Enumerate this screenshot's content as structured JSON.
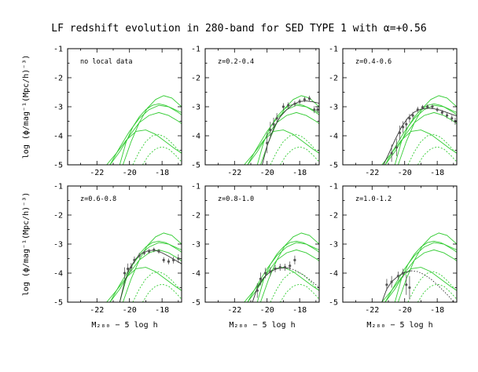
{
  "figure": {
    "title": "LF redshift evolution in 280-band for SED TYPE 1 with α=+0.56",
    "ylabel": "log (ϕ/mag⁻¹(Mpc/h)⁻³)",
    "xlabel": "M₂₈₀ − 5 log h"
  },
  "colors": {
    "axes": "#000000",
    "data_points": "#555555",
    "fit_curve": "#333333",
    "reference_curves": "#33cc33"
  },
  "chart_data": [
    {
      "type": "scatter",
      "panel_label": "no local data",
      "xlim": [
        -23.8,
        -16.8
      ],
      "ylim": [
        -5,
        -1
      ],
      "x_ticks": [
        -22,
        -20,
        -18
      ],
      "y_ticks": [
        -5,
        -4,
        -3,
        -2,
        -1
      ],
      "points": [],
      "fit": [],
      "fit_extrapolated": []
    },
    {
      "type": "scatter",
      "panel_label": "z=0.2-0.4",
      "xlim": [
        -23.8,
        -16.8
      ],
      "ylim": [
        -5,
        -1
      ],
      "x_ticks": [
        -22,
        -20,
        -18
      ],
      "y_ticks": [
        -5,
        -4,
        -3,
        -2,
        -1
      ],
      "points": [
        {
          "x": -20.0,
          "y": -4.25,
          "err": 0.35
        },
        {
          "x": -19.8,
          "y": -3.8,
          "err": 0.28
        },
        {
          "x": -19.6,
          "y": -3.6,
          "err": 0.22
        },
        {
          "x": -19.4,
          "y": -3.4,
          "err": 0.18
        },
        {
          "x": -19.0,
          "y": -3.0,
          "err": 0.12
        },
        {
          "x": -18.7,
          "y": -2.95,
          "err": 0.1
        },
        {
          "x": -18.3,
          "y": -2.9,
          "err": 0.09
        },
        {
          "x": -18.0,
          "y": -2.82,
          "err": 0.09
        },
        {
          "x": -17.7,
          "y": -2.75,
          "err": 0.09
        },
        {
          "x": -17.4,
          "y": -2.72,
          "err": 0.1
        },
        {
          "x": -17.1,
          "y": -3.1,
          "err": 0.12
        },
        {
          "x": -16.9,
          "y": -3.1,
          "err": 0.12
        }
      ],
      "fit": [
        {
          "x": -20.3,
          "y": -5.0
        },
        {
          "x": -20.0,
          "y": -4.35
        },
        {
          "x": -19.6,
          "y": -3.75
        },
        {
          "x": -19.2,
          "y": -3.35
        },
        {
          "x": -18.8,
          "y": -3.1
        },
        {
          "x": -18.4,
          "y": -2.92
        },
        {
          "x": -18.0,
          "y": -2.82
        },
        {
          "x": -17.6,
          "y": -2.8
        },
        {
          "x": -17.2,
          "y": -2.83
        },
        {
          "x": -16.8,
          "y": -2.88
        }
      ],
      "fit_extrapolated": []
    },
    {
      "type": "scatter",
      "panel_label": "z=0.4-0.6",
      "xlim": [
        -23.8,
        -16.8
      ],
      "ylim": [
        -5,
        -1
      ],
      "x_ticks": [
        -22,
        -20,
        -18
      ],
      "y_ticks": [
        -5,
        -4,
        -3,
        -2,
        -1
      ],
      "points": [
        {
          "x": -20.8,
          "y": -4.6,
          "err": 0.3
        },
        {
          "x": -20.5,
          "y": -4.4,
          "err": 0.3
        },
        {
          "x": -20.3,
          "y": -3.9,
          "err": 0.25
        },
        {
          "x": -20.1,
          "y": -3.7,
          "err": 0.2
        },
        {
          "x": -19.9,
          "y": -3.6,
          "err": 0.18
        },
        {
          "x": -19.7,
          "y": -3.4,
          "err": 0.15
        },
        {
          "x": -19.5,
          "y": -3.3,
          "err": 0.12
        },
        {
          "x": -19.2,
          "y": -3.1,
          "err": 0.1
        },
        {
          "x": -18.9,
          "y": -3.02,
          "err": 0.08
        },
        {
          "x": -18.6,
          "y": -3.0,
          "err": 0.08
        },
        {
          "x": -18.3,
          "y": -3.0,
          "err": 0.08
        },
        {
          "x": -18.0,
          "y": -3.1,
          "err": 0.08
        },
        {
          "x": -17.7,
          "y": -3.2,
          "err": 0.09
        },
        {
          "x": -17.4,
          "y": -3.3,
          "err": 0.1
        },
        {
          "x": -17.1,
          "y": -3.4,
          "err": 0.11
        },
        {
          "x": -16.9,
          "y": -3.5,
          "err": 0.12
        }
      ],
      "fit": [
        {
          "x": -21.3,
          "y": -5.0
        },
        {
          "x": -21.0,
          "y": -4.65
        },
        {
          "x": -20.6,
          "y": -4.15
        },
        {
          "x": -20.2,
          "y": -3.7
        },
        {
          "x": -19.8,
          "y": -3.38
        },
        {
          "x": -19.4,
          "y": -3.18
        },
        {
          "x": -19.0,
          "y": -3.08
        },
        {
          "x": -18.6,
          "y": -3.05
        },
        {
          "x": -18.2,
          "y": -3.07
        },
        {
          "x": -17.8,
          "y": -3.12
        },
        {
          "x": -17.4,
          "y": -3.2
        },
        {
          "x": -17.0,
          "y": -3.28
        },
        {
          "x": -16.8,
          "y": -3.32
        }
      ],
      "fit_extrapolated": []
    },
    {
      "type": "scatter",
      "panel_label": "z=0.6-0.8",
      "xlim": [
        -23.8,
        -16.8
      ],
      "ylim": [
        -5,
        -1
      ],
      "x_ticks": [
        -22,
        -20,
        -18
      ],
      "y_ticks": [
        -5,
        -4,
        -3,
        -2,
        -1
      ],
      "points": [
        {
          "x": -20.3,
          "y": -4.0,
          "err": 0.2
        },
        {
          "x": -20.1,
          "y": -3.85,
          "err": 0.18
        },
        {
          "x": -19.9,
          "y": -3.8,
          "err": 0.15
        },
        {
          "x": -19.7,
          "y": -3.55,
          "err": 0.12
        },
        {
          "x": -19.4,
          "y": -3.4,
          "err": 0.1
        },
        {
          "x": -19.1,
          "y": -3.3,
          "err": 0.08
        },
        {
          "x": -18.8,
          "y": -3.25,
          "err": 0.08
        },
        {
          "x": -18.5,
          "y": -3.2,
          "err": 0.08
        },
        {
          "x": -18.2,
          "y": -3.25,
          "err": 0.08
        },
        {
          "x": -17.9,
          "y": -3.55,
          "err": 0.1
        },
        {
          "x": -17.6,
          "y": -3.6,
          "err": 0.1
        },
        {
          "x": -17.3,
          "y": -3.55,
          "err": 0.12
        },
        {
          "x": -17.0,
          "y": -3.5,
          "err": 0.15
        }
      ],
      "fit": [
        {
          "x": -20.6,
          "y": -5.0
        },
        {
          "x": -20.3,
          "y": -4.3
        },
        {
          "x": -20.0,
          "y": -3.85
        },
        {
          "x": -19.6,
          "y": -3.5
        },
        {
          "x": -19.2,
          "y": -3.3
        },
        {
          "x": -18.8,
          "y": -3.22
        },
        {
          "x": -18.4,
          "y": -3.22
        },
        {
          "x": -18.0,
          "y": -3.3
        },
        {
          "x": -17.6,
          "y": -3.42
        },
        {
          "x": -17.2,
          "y": -3.55
        },
        {
          "x": -16.8,
          "y": -3.68
        }
      ],
      "fit_extrapolated": []
    },
    {
      "type": "scatter",
      "panel_label": "z=0.8-1.0",
      "xlim": [
        -23.8,
        -16.8
      ],
      "ylim": [
        -5,
        -1
      ],
      "x_ticks": [
        -22,
        -20,
        -18
      ],
      "y_ticks": [
        -5,
        -4,
        -3,
        -2,
        -1
      ],
      "points": [
        {
          "x": -20.6,
          "y": -4.6,
          "err": 0.25
        },
        {
          "x": -20.4,
          "y": -4.2,
          "err": 0.22
        },
        {
          "x": -20.1,
          "y": -4.0,
          "err": 0.18
        },
        {
          "x": -19.8,
          "y": -3.95,
          "err": 0.15
        },
        {
          "x": -19.5,
          "y": -3.85,
          "err": 0.12
        },
        {
          "x": -19.2,
          "y": -3.8,
          "err": 0.12
        },
        {
          "x": -18.9,
          "y": -3.8,
          "err": 0.12
        },
        {
          "x": -18.6,
          "y": -3.75,
          "err": 0.15
        },
        {
          "x": -18.3,
          "y": -3.55,
          "err": 0.15
        }
      ],
      "fit": [
        {
          "x": -20.9,
          "y": -5.0
        },
        {
          "x": -20.6,
          "y": -4.5
        },
        {
          "x": -20.2,
          "y": -4.15
        },
        {
          "x": -19.8,
          "y": -3.95
        },
        {
          "x": -19.4,
          "y": -3.85
        },
        {
          "x": -19.0,
          "y": -3.82
        },
        {
          "x": -18.6,
          "y": -3.83
        }
      ],
      "fit_extrapolated": [
        {
          "x": -18.6,
          "y": -3.83
        },
        {
          "x": -18.2,
          "y": -3.92
        },
        {
          "x": -17.8,
          "y": -4.05
        },
        {
          "x": -17.4,
          "y": -4.22
        },
        {
          "x": -17.0,
          "y": -4.4
        },
        {
          "x": -16.8,
          "y": -4.5
        }
      ]
    },
    {
      "type": "scatter",
      "panel_label": "z=1.0-1.2",
      "xlim": [
        -23.8,
        -16.8
      ],
      "ylim": [
        -5,
        -1
      ],
      "x_ticks": [
        -22,
        -20,
        -18
      ],
      "y_ticks": [
        -5,
        -4,
        -3,
        -2,
        -1
      ],
      "points": [
        {
          "x": -21.1,
          "y": -4.4,
          "err": 0.2
        },
        {
          "x": -20.8,
          "y": -4.3,
          "err": 0.2
        },
        {
          "x": -20.4,
          "y": -4.1,
          "err": 0.15
        },
        {
          "x": -20.1,
          "y": -4.0,
          "err": 0.15
        },
        {
          "x": -19.9,
          "y": -4.4,
          "err": 0.35
        },
        {
          "x": -19.7,
          "y": -4.5,
          "err": 0.4
        }
      ],
      "fit": [
        {
          "x": -21.4,
          "y": -5.0
        },
        {
          "x": -21.1,
          "y": -4.55
        },
        {
          "x": -20.8,
          "y": -4.3
        },
        {
          "x": -20.4,
          "y": -4.1
        },
        {
          "x": -20.0,
          "y": -3.98
        },
        {
          "x": -19.6,
          "y": -3.92
        }
      ],
      "fit_extrapolated": [
        {
          "x": -19.6,
          "y": -3.92
        },
        {
          "x": -19.2,
          "y": -3.95
        },
        {
          "x": -18.8,
          "y": -4.05
        },
        {
          "x": -18.4,
          "y": -4.2
        },
        {
          "x": -18.0,
          "y": -4.4
        },
        {
          "x": -17.6,
          "y": -4.62
        },
        {
          "x": -17.2,
          "y": -4.85
        },
        {
          "x": -17.0,
          "y": -5.0
        }
      ]
    }
  ],
  "reference_curves": {
    "solid": [
      [
        {
          "x": -20.6,
          "y": -5.0
        },
        {
          "x": -20.2,
          "y": -4.2
        },
        {
          "x": -19.8,
          "y": -3.7
        },
        {
          "x": -19.4,
          "y": -3.35
        },
        {
          "x": -19.0,
          "y": -3.1
        },
        {
          "x": -18.6,
          "y": -2.95
        },
        {
          "x": -18.2,
          "y": -2.9
        },
        {
          "x": -17.8,
          "y": -2.95
        },
        {
          "x": -17.4,
          "y": -3.05
        },
        {
          "x": -17.0,
          "y": -3.15
        },
        {
          "x": -16.8,
          "y": -3.2
        }
      ],
      [
        {
          "x": -21.2,
          "y": -5.0
        },
        {
          "x": -20.6,
          "y": -4.4
        },
        {
          "x": -20.0,
          "y": -3.85
        },
        {
          "x": -19.4,
          "y": -3.4
        },
        {
          "x": -18.8,
          "y": -3.1
        },
        {
          "x": -18.2,
          "y": -2.95
        },
        {
          "x": -17.6,
          "y": -3.0
        },
        {
          "x": -17.0,
          "y": -3.2
        },
        {
          "x": -16.8,
          "y": -3.28
        }
      ],
      [
        {
          "x": -21.2,
          "y": -5.0
        },
        {
          "x": -20.6,
          "y": -4.55
        },
        {
          "x": -20.0,
          "y": -4.0
        },
        {
          "x": -19.4,
          "y": -3.55
        },
        {
          "x": -18.8,
          "y": -3.3
        },
        {
          "x": -18.2,
          "y": -3.2
        },
        {
          "x": -17.6,
          "y": -3.3
        },
        {
          "x": -17.0,
          "y": -3.5
        },
        {
          "x": -16.8,
          "y": -3.58
        }
      ],
      [
        {
          "x": -21.4,
          "y": -5.0
        },
        {
          "x": -20.8,
          "y": -4.6
        },
        {
          "x": -20.2,
          "y": -4.15
        },
        {
          "x": -19.6,
          "y": -3.85
        },
        {
          "x": -19.0,
          "y": -3.8
        },
        {
          "x": -18.4,
          "y": -3.95
        },
        {
          "x": -17.8,
          "y": -4.2
        },
        {
          "x": -17.2,
          "y": -4.45
        },
        {
          "x": -16.8,
          "y": -4.6
        }
      ],
      [
        {
          "x": -20.4,
          "y": -5.0
        },
        {
          "x": -19.9,
          "y": -4.2
        },
        {
          "x": -19.4,
          "y": -3.55
        },
        {
          "x": -18.9,
          "y": -3.05
        },
        {
          "x": -18.4,
          "y": -2.75
        },
        {
          "x": -17.9,
          "y": -2.62
        },
        {
          "x": -17.4,
          "y": -2.7
        },
        {
          "x": -16.9,
          "y": -2.95
        },
        {
          "x": -16.8,
          "y": -3.0
        }
      ]
    ],
    "dotted": [
      [
        {
          "x": -19.8,
          "y": -5.0
        },
        {
          "x": -19.4,
          "y": -4.55
        },
        {
          "x": -19.0,
          "y": -4.2
        },
        {
          "x": -18.6,
          "y": -4.0
        },
        {
          "x": -18.2,
          "y": -3.95
        },
        {
          "x": -17.8,
          "y": -4.05
        },
        {
          "x": -17.4,
          "y": -4.25
        },
        {
          "x": -17.0,
          "y": -4.5
        },
        {
          "x": -16.8,
          "y": -4.62
        }
      ],
      [
        {
          "x": -19.2,
          "y": -5.0
        },
        {
          "x": -18.8,
          "y": -4.65
        },
        {
          "x": -18.4,
          "y": -4.45
        },
        {
          "x": -18.0,
          "y": -4.38
        },
        {
          "x": -17.6,
          "y": -4.45
        },
        {
          "x": -17.2,
          "y": -4.65
        },
        {
          "x": -16.8,
          "y": -4.9
        }
      ]
    ]
  }
}
